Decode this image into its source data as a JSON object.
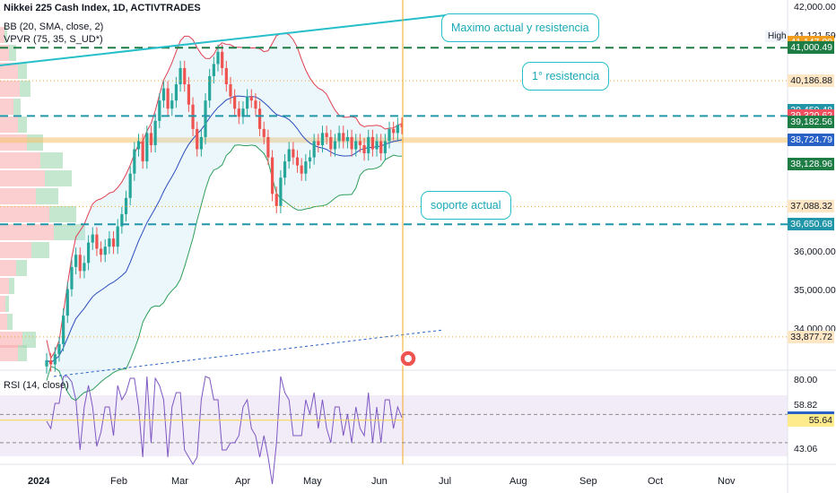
{
  "header": {
    "title": "Nikkei 225 Cash Index, 1D, ACTIVTRADES",
    "bb": "BB (20, SMA, close, 2)",
    "vpvr": "VPVR (75, 35, S_UD*)",
    "rsi": "RSI (14, close)"
  },
  "annotations": {
    "max_label": "Maximo actual y resistencia",
    "res1_label": "1° resistencia",
    "support_label": "soporte actual"
  },
  "price_axis": {
    "ticks": [
      "42,000.00",
      "41,000.00",
      "36,000.00",
      "35,000.00",
      "34,000.00"
    ],
    "high_label": "High",
    "high_value": "41,121.59"
  },
  "price_tags": [
    {
      "text": "41,147.00",
      "price": 41147,
      "bg": "#f29d1d",
      "fg": "#ffffff"
    },
    {
      "text": "41,000.49",
      "price": 41000.49,
      "bg": "#1e7c45",
      "fg": "#ffffff"
    },
    {
      "text": "40,186.88",
      "price": 40186.88,
      "bg": "#fde6c4",
      "fg": "#131722"
    },
    {
      "text": "39,450.48",
      "price": 39450.48,
      "bg": "#2196a8",
      "fg": "#ffffff"
    },
    {
      "text": "39,320.62",
      "price": 39320.62,
      "bg": "#ef4f5f",
      "fg": "#ffffff"
    },
    {
      "text": "39,182.56",
      "price": 39182.56,
      "bg": "#1e7c45",
      "fg": "#ffffff"
    },
    {
      "text": "38,724.79",
      "price": 38724.79,
      "bg": "#2962c6",
      "fg": "#ffffff"
    },
    {
      "text": "38,128.96",
      "price": 38128.96,
      "bg": "#1e7c45",
      "fg": "#ffffff"
    },
    {
      "text": "37,088.32",
      "price": 37088.32,
      "bg": "#fde6c4",
      "fg": "#131722"
    },
    {
      "text": "36,650.68",
      "price": 36650.68,
      "bg": "#2196a8",
      "fg": "#ffffff"
    },
    {
      "text": "33,877.72",
      "price": 33877.72,
      "bg": "#fde6c4",
      "fg": "#131722"
    }
  ],
  "rsi_axis": {
    "ticks": [
      "80.00",
      "58.82",
      "43.06"
    ],
    "tags": [
      {
        "text": "57.01",
        "value": 57.01,
        "bg": "#2962c6",
        "fg": "#ffffff"
      },
      {
        "text": "55.64",
        "value": 55.64,
        "bg": "#fdeb8c",
        "fg": "#131722"
      }
    ]
  },
  "time_axis": [
    "2024",
    "Feb",
    "Mar",
    "Apr",
    "May",
    "Jun",
    "Jul",
    "Aug",
    "Sep",
    "Oct",
    "Nov"
  ],
  "chart_data": {
    "type": "candlestick",
    "title": "Nikkei 225 Cash Index, 1D, ACTIVTRADES",
    "x_range": [
      "2024-01",
      "2024-11"
    ],
    "ylim": [
      33600,
      42000
    ],
    "closes": [
      33300,
      33200,
      33450,
      33700,
      34400,
      35050,
      35600,
      35900,
      35500,
      35700,
      36200,
      36400,
      36050,
      35900,
      36100,
      36300,
      36100,
      36600,
      36900,
      37300,
      37900,
      38500,
      38700,
      38200,
      38900,
      38600,
      39200,
      39700,
      40000,
      39500,
      39700,
      40100,
      40500,
      40100,
      39600,
      39000,
      38500,
      38800,
      39700,
      40300,
      40600,
      40900,
      40500,
      40100,
      39800,
      39500,
      39300,
      39500,
      39800,
      39700,
      39500,
      39000,
      38800,
      38300,
      37400,
      37100,
      37800,
      38200,
      38500,
      38300,
      38100,
      37900,
      38200,
      38300,
      38700,
      38600,
      38900,
      38800,
      38500,
      38700,
      38900,
      38700,
      38800,
      38500,
      38700,
      38600,
      38400,
      38800,
      38500,
      38700,
      38400,
      38700,
      39000,
      38900,
      39100,
      39050
    ],
    "bollinger": {
      "period": 20,
      "stddev": 2,
      "source": "close"
    },
    "levels": [
      {
        "label": "Maximo actual y resistencia",
        "price": 41000.49,
        "style": "dashed"
      },
      {
        "label": "1° resistencia",
        "price": 39320.62,
        "style": "dashed"
      },
      {
        "label": "soporte actual",
        "price": 36650.68,
        "style": "dashed"
      }
    ],
    "vpvr_poc": 38724.79,
    "rsi": {
      "period": 14,
      "upper": 58.82,
      "lower": 43.06,
      "last": 57.01,
      "ma": 55.64
    }
  }
}
